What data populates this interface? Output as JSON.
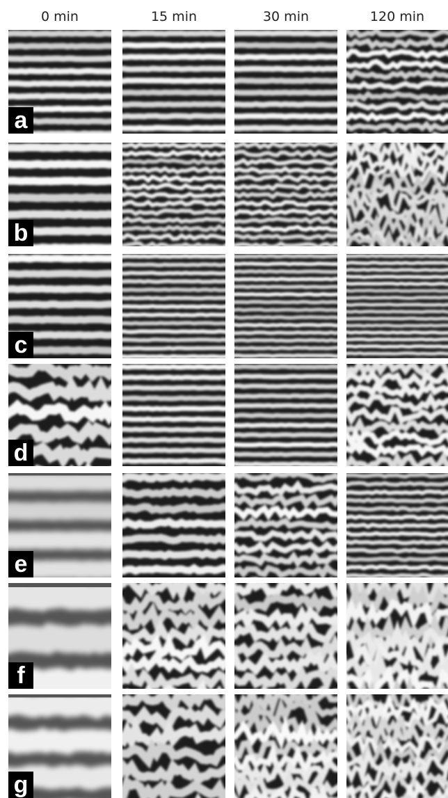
{
  "columns": [
    "0 min",
    "15 min",
    "30 min",
    "120 min"
  ],
  "rows": [
    "a",
    "b",
    "c",
    "d",
    "e",
    "f",
    "g"
  ]
}
